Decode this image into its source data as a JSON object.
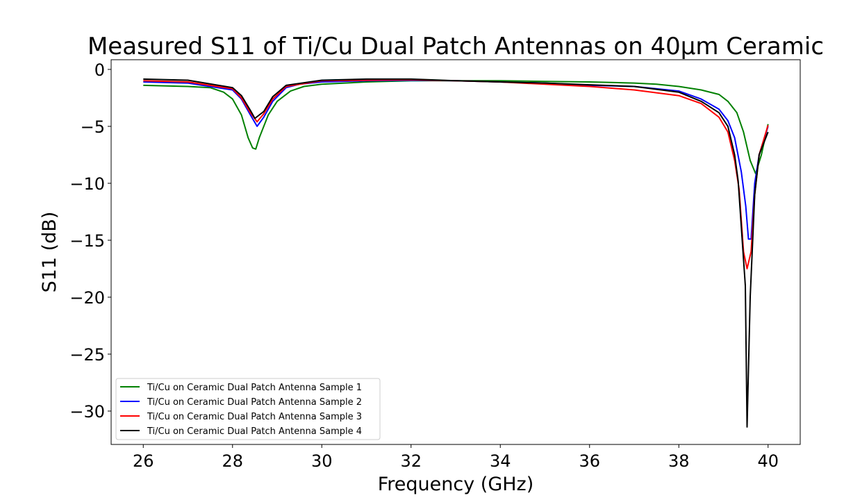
{
  "chart_data": {
    "type": "line",
    "title": "Measured S11 of Ti/Cu Dual Patch Antennas on 40µm Ceramic",
    "xlabel": "Frequency (GHz)",
    "ylabel": "S11 (dB)",
    "xlim": [
      25.28,
      40.72
    ],
    "ylim": [
      -32.93,
      0.85
    ],
    "xticks": [
      26,
      28,
      30,
      32,
      34,
      36,
      38,
      40
    ],
    "yticks": [
      0,
      -5,
      -10,
      -15,
      -20,
      -25,
      -30
    ],
    "xtick_labels": [
      "26",
      "28",
      "30",
      "32",
      "34",
      "36",
      "38",
      "40"
    ],
    "ytick_labels": [
      "0",
      "−5",
      "−10",
      "−15",
      "−20",
      "−25",
      "−30"
    ],
    "grid": false,
    "legend_placement": "lower-left",
    "series": [
      {
        "name": "Ti/Cu on Ceramic Dual Patch Antenna Sample 1",
        "color": "#008000",
        "x": [
          26,
          27,
          27.5,
          27.8,
          28.0,
          28.2,
          28.35,
          28.45,
          28.52,
          28.6,
          28.8,
          29.0,
          29.3,
          29.6,
          30,
          31,
          32,
          33,
          34,
          35,
          36,
          37,
          37.5,
          38,
          38.5,
          38.9,
          39.1,
          39.3,
          39.45,
          39.6,
          39.72,
          39.85,
          40.0
        ],
        "y": [
          -1.4,
          -1.5,
          -1.6,
          -2.0,
          -2.6,
          -4.0,
          -6.0,
          -6.9,
          -7.0,
          -6.0,
          -4.0,
          -2.8,
          -1.9,
          -1.5,
          -1.3,
          -1.1,
          -1.0,
          -1.0,
          -1.0,
          -1.05,
          -1.1,
          -1.2,
          -1.3,
          -1.5,
          -1.8,
          -2.2,
          -2.8,
          -3.8,
          -5.5,
          -8.0,
          -9.15,
          -7.5,
          -4.8
        ]
      },
      {
        "name": "Ti/Cu on Ceramic Dual Patch Antenna Sample 2",
        "color": "#0000ff",
        "x": [
          26,
          27,
          28,
          28.2,
          28.4,
          28.55,
          28.7,
          28.9,
          29.2,
          29.5,
          30,
          31,
          32,
          33,
          34,
          35,
          36,
          37,
          38,
          38.5,
          38.9,
          39.1,
          39.25,
          39.4,
          39.5,
          39.56,
          39.62,
          39.7,
          39.8,
          40.0
        ],
        "y": [
          -1.1,
          -1.2,
          -1.8,
          -2.6,
          -4.0,
          -5.0,
          -4.2,
          -2.8,
          -1.6,
          -1.3,
          -1.1,
          -1.0,
          -0.95,
          -1.0,
          -1.1,
          -1.2,
          -1.4,
          -1.5,
          -1.9,
          -2.6,
          -3.5,
          -4.5,
          -6.0,
          -9.0,
          -12.0,
          -14.9,
          -14.9,
          -10.0,
          -7.5,
          -5.0
        ]
      },
      {
        "name": "Ti/Cu on Ceramic Dual Patch Antenna Sample 3",
        "color": "#ff0000",
        "x": [
          26,
          27,
          28,
          28.2,
          28.4,
          28.55,
          28.7,
          28.9,
          29.2,
          30,
          32,
          34,
          35,
          36,
          37,
          38,
          38.5,
          38.9,
          39.1,
          39.25,
          39.35,
          39.45,
          39.53,
          39.62,
          39.7,
          39.8,
          40.0
        ],
        "y": [
          -1.0,
          -1.1,
          -1.7,
          -2.5,
          -3.8,
          -4.6,
          -3.9,
          -2.6,
          -1.5,
          -1.0,
          -0.9,
          -1.1,
          -1.3,
          -1.5,
          -1.8,
          -2.3,
          -3.0,
          -4.2,
          -5.5,
          -8.0,
          -10.5,
          -16.0,
          -17.5,
          -16.0,
          -11.0,
          -7.5,
          -4.9
        ]
      },
      {
        "name": "Ti/Cu on Ceramic Dual Patch Antenna Sample 4",
        "color": "#000000",
        "x": [
          26,
          27,
          28,
          28.2,
          28.4,
          28.5,
          28.7,
          28.9,
          29.2,
          30,
          31,
          32,
          33,
          34,
          35,
          36,
          37,
          38,
          38.5,
          38.9,
          39.1,
          39.25,
          39.33,
          39.42,
          39.49,
          39.53,
          39.6,
          39.7,
          39.8,
          40.0
        ],
        "y": [
          -0.85,
          -0.95,
          -1.6,
          -2.3,
          -3.6,
          -4.3,
          -3.7,
          -2.4,
          -1.4,
          -0.95,
          -0.85,
          -0.85,
          -1.0,
          -1.1,
          -1.2,
          -1.35,
          -1.5,
          -2.0,
          -2.8,
          -3.8,
          -5.0,
          -7.5,
          -9.8,
          -15.0,
          -19.0,
          -31.4,
          -20.0,
          -11.0,
          -7.5,
          -5.5
        ]
      }
    ]
  }
}
